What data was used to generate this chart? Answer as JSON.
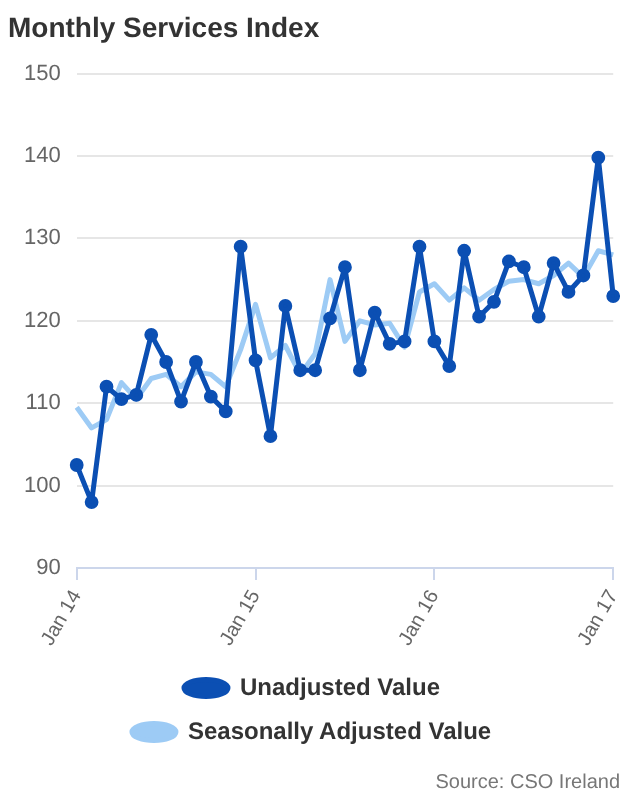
{
  "chart_data": {
    "type": "line",
    "title": "Monthly Services Index",
    "categories": [
      "Jan 14",
      null,
      null,
      null,
      null,
      null,
      null,
      null,
      null,
      null,
      null,
      null,
      "Jan 15",
      null,
      null,
      null,
      null,
      null,
      null,
      null,
      null,
      null,
      null,
      null,
      "Jan 16",
      null,
      null,
      null,
      null,
      null,
      null,
      null,
      null,
      null,
      null,
      null,
      "Jan 17"
    ],
    "series": [
      {
        "name": "Unadjusted Value",
        "color": "#0b4fb3",
        "marker": "circle",
        "values": [
          102.5,
          98,
          112,
          110.5,
          111,
          118.3,
          115,
          110.2,
          115,
          110.8,
          109,
          129,
          115.2,
          106,
          121.8,
          114,
          114,
          120.3,
          126.5,
          114,
          121,
          117.2,
          117.5,
          129,
          117.5,
          114.5,
          128.5,
          120.5,
          122.3,
          127.2,
          126.5,
          120.5,
          127,
          123.5,
          125.5,
          139.8,
          123
        ]
      },
      {
        "name": "Seasonally Adjusted Value",
        "color": "#9dcbf5",
        "marker": "none",
        "values": [
          109.5,
          107,
          108,
          112.5,
          110.5,
          113,
          113.5,
          112,
          113.8,
          113.5,
          112,
          116.5,
          122,
          115.5,
          117,
          113.5,
          116,
          125,
          117.5,
          120,
          119.5,
          119.7,
          116.8,
          123.5,
          124.5,
          122.5,
          124,
          122.5,
          123.8,
          124.8,
          125,
          124.5,
          125.5,
          127,
          125.3,
          128.5,
          128
        ]
      }
    ],
    "ylim": [
      90,
      150
    ],
    "yticks": [
      90,
      100,
      110,
      120,
      130,
      140,
      150
    ],
    "grid": "y",
    "legend": "bottom",
    "annotations": [
      "Source: CSO Ireland"
    ]
  }
}
